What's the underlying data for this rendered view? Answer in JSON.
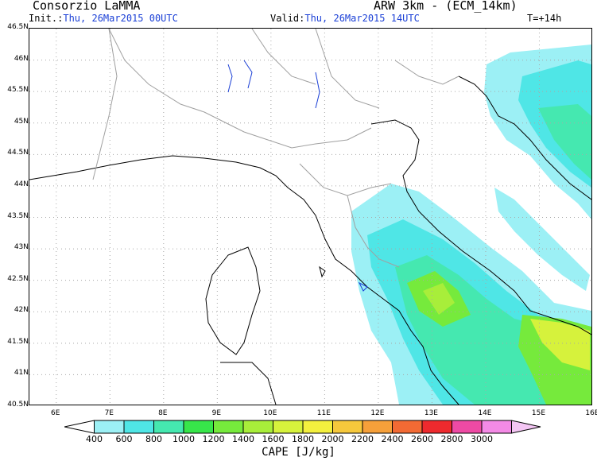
{
  "header": {
    "org": "Consorzio LaMMA",
    "model": "ARW 3km - (ECM_14km)",
    "init_label": "Init.:",
    "init_value": "Thu, 26Mar2015 00UTC",
    "valid_label": "Valid:",
    "valid_value": "Thu, 26Mar2015 14UTC",
    "forecast_step": "T=+14h"
  },
  "map": {
    "lat_labels": [
      "46.5N",
      "46N",
      "45.5N",
      "45N",
      "44.5N",
      "44N",
      "43.5N",
      "43N",
      "42.5N",
      "42N",
      "41.5N",
      "41N",
      "40.5N"
    ],
    "lon_labels": [
      "6E",
      "7E",
      "8E",
      "9E",
      "10E",
      "11E",
      "12E",
      "13E",
      "14E",
      "15E",
      "16E"
    ],
    "lat_range": [
      40.5,
      46.5
    ],
    "lon_range": [
      5.5,
      16.0
    ],
    "grid": true
  },
  "colorbar": {
    "title": "CAPE [J/kg]",
    "labels": [
      "400",
      "600",
      "800",
      "1000",
      "1200",
      "1400",
      "1600",
      "1800",
      "2000",
      "2200",
      "2400",
      "2600",
      "2800",
      "3000"
    ],
    "colors": [
      "#9cf0f5",
      "#4fe6e6",
      "#45e8b0",
      "#37e64a",
      "#76ea3c",
      "#a8ee3a",
      "#d6f23c",
      "#f4f03e",
      "#f6c83c",
      "#f6a03a",
      "#f26a34",
      "#ee2a2e",
      "#ee4aa4",
      "#f48ae6",
      "#f4c6f4"
    ],
    "min_color": "#ffffff"
  },
  "colors": {
    "coast": "#000000",
    "border": "#a0a0a0",
    "lake": "#1a3fd6",
    "grid": "#a8a8a8"
  }
}
